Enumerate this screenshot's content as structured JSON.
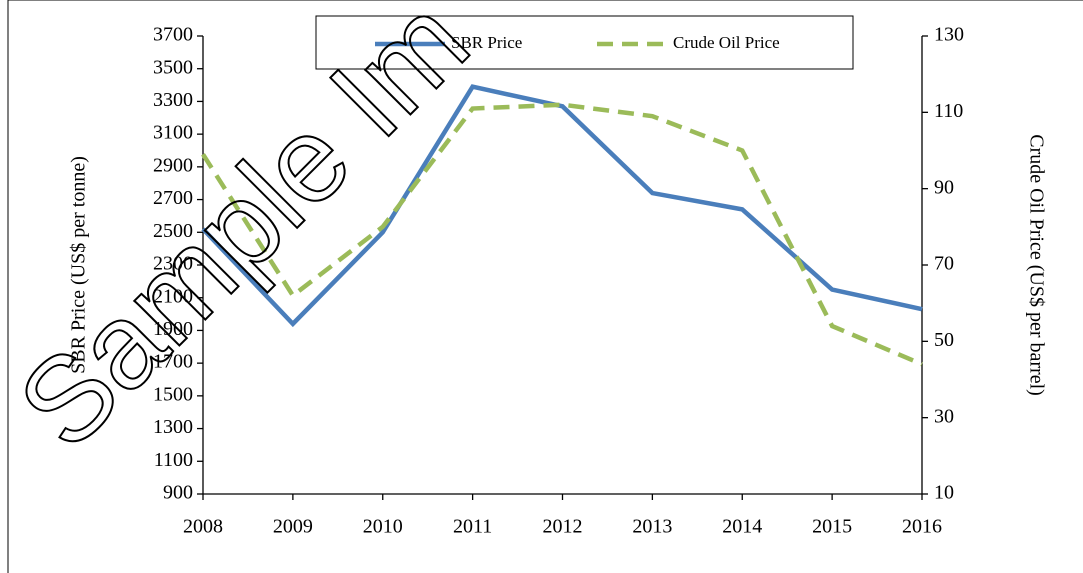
{
  "chart_data": {
    "type": "line",
    "watermark": "Sample Im",
    "categories": [
      "2008",
      "2009",
      "2010",
      "2011",
      "2012",
      "2013",
      "2014",
      "2015",
      "2016"
    ],
    "series": [
      {
        "name": "SBR Price",
        "color": "#4a7ebb",
        "dash": false,
        "axis": "y",
        "values": [
          2520,
          1940,
          2500,
          3390,
          3270,
          2740,
          2640,
          2150,
          2030
        ]
      },
      {
        "name": "Crude Oil Price",
        "color": "#9bbb59",
        "dash": true,
        "axis": "y2",
        "values": [
          99,
          62,
          80,
          111,
          112,
          109,
          100,
          54,
          44
        ]
      }
    ],
    "ylabel": "SBR  Price  (US$  per  tonne)",
    "y2label": "Crude  Oil  Price  (US$  per barrel)",
    "ylim": [
      900,
      3700
    ],
    "yticks": [
      900,
      1100,
      1300,
      1500,
      1700,
      1900,
      2100,
      2300,
      2500,
      2700,
      2900,
      3100,
      3300,
      3500,
      3700
    ],
    "y2lim": [
      10,
      130
    ],
    "y2ticks": [
      10,
      30,
      50,
      70,
      90,
      110,
      130
    ]
  }
}
